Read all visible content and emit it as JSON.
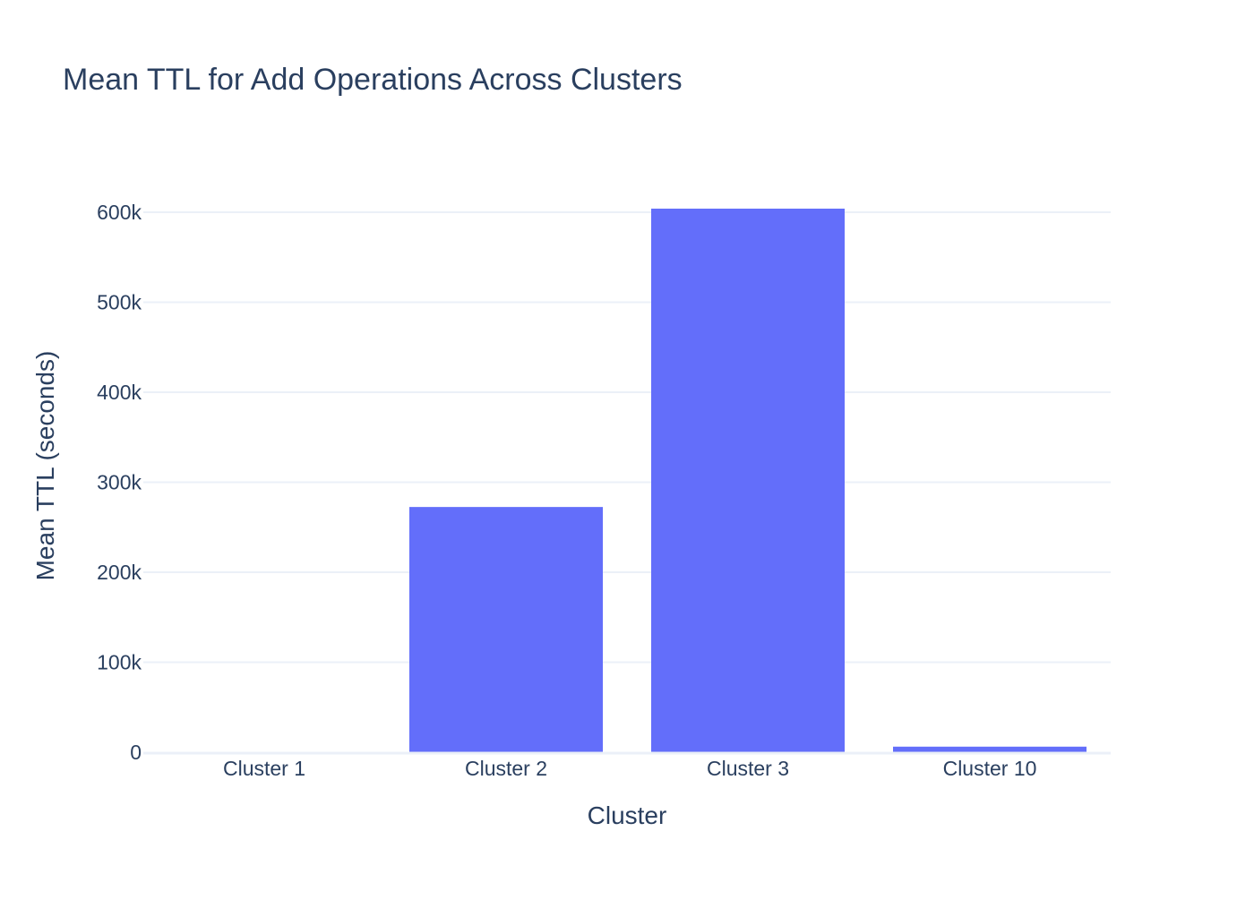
{
  "chart_data": {
    "type": "bar",
    "title": "Mean TTL for Add Operations Across Clusters",
    "xlabel": "Cluster",
    "ylabel": "Mean TTL (seconds)",
    "categories": [
      "Cluster 1",
      "Cluster 2",
      "Cluster 3",
      "Cluster 10"
    ],
    "values": [
      0,
      272500,
      604000,
      6200
    ],
    "ylim": [
      0,
      640000
    ],
    "yticks": [
      0,
      100000,
      200000,
      300000,
      400000,
      500000,
      600000
    ],
    "ytick_labels": [
      "0",
      "100k",
      "200k",
      "300k",
      "400k",
      "500k",
      "600k"
    ],
    "grid": true,
    "legend": "none",
    "colors": {
      "bar": "#636efa",
      "text": "#2a3f5f",
      "grid": "#ebf0f8",
      "background": "#ffffff"
    }
  }
}
